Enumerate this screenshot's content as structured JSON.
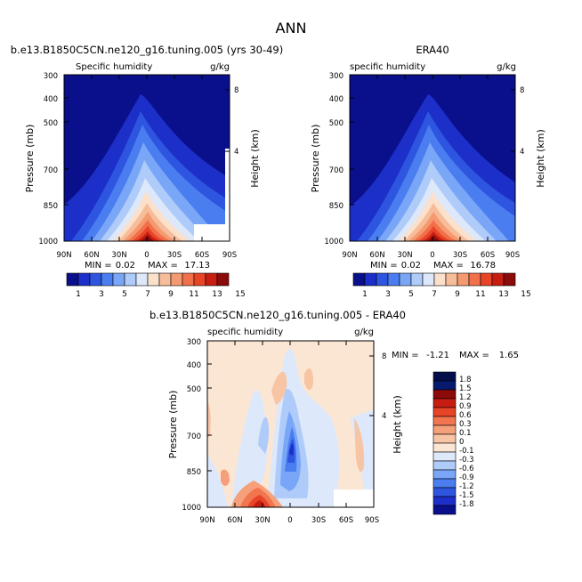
{
  "page": {
    "title": "ANN"
  },
  "colors": {
    "bg_field": "#ffffff",
    "abs_scale": [
      "#0a0f8c",
      "#1c2fc8",
      "#2e55e0",
      "#4a7df0",
      "#7aa6f7",
      "#aecbf9",
      "#dde8fb",
      "#fbe1cc",
      "#f7bd9a",
      "#f59a70",
      "#f1704a",
      "#e84428",
      "#c81e12",
      "#8b0a0a"
    ],
    "diff_scale": [
      "#0a0f8c",
      "#1c2fc8",
      "#2e55e0",
      "#4a7df0",
      "#7aa6f7",
      "#aecbf9",
      "#dde8fb",
      "#fbe6d4",
      "#f7c4a4",
      "#f5a07a",
      "#f17650",
      "#e84428",
      "#c81e12",
      "#8b0a0a"
    ]
  },
  "chart_data": [
    {
      "type": "heatmap",
      "title": "b.e13.B1850C5CN.ne120_g16.tuning.005 (yrs 30-49)",
      "subtitle_left": "Specific humidity",
      "subtitle_right": "g/kg",
      "xlabel": "",
      "ylabel": "Pressure (mb)",
      "ylabel_right": "Height (km)",
      "xticks": [
        "90N",
        "60N",
        "30N",
        "0",
        "30S",
        "60S",
        "90S"
      ],
      "yticks": [
        "300",
        "400",
        "500",
        "700",
        "850",
        "1000"
      ],
      "yticks_right": [
        "8",
        "4"
      ],
      "min_label": "MIN =",
      "min_value": "0.02",
      "max_label": "MAX =",
      "max_value": "17.13",
      "colorbar_labels": [
        "1",
        "3",
        "5",
        "7",
        "9",
        "11",
        "13",
        "15"
      ]
    },
    {
      "type": "heatmap",
      "title": "ERA40",
      "subtitle_left": "specific humidity",
      "subtitle_right": "g/kg",
      "xlabel": "",
      "ylabel": "Pressure (mb)",
      "ylabel_right": "Height (km)",
      "xticks": [
        "90N",
        "60N",
        "30N",
        "0",
        "30S",
        "60S",
        "90S"
      ],
      "yticks": [
        "300",
        "400",
        "500",
        "700",
        "850",
        "1000"
      ],
      "yticks_right": [
        "8",
        "4"
      ],
      "min_label": "MIN =",
      "min_value": "0.02",
      "max_label": "MAX =",
      "max_value": "16.78",
      "colorbar_labels": [
        "1",
        "3",
        "5",
        "7",
        "9",
        "11",
        "13",
        "15"
      ]
    },
    {
      "type": "heatmap",
      "title": "b.e13.B1850C5CN.ne120_g16.tuning.005 - ERA40",
      "subtitle_left": "specific humidity",
      "subtitle_right": "g/kg",
      "xlabel": "",
      "ylabel": "Pressure (mb)",
      "ylabel_right": "Height (km)",
      "xticks": [
        "90N",
        "60N",
        "30N",
        "0",
        "30S",
        "60S",
        "90S"
      ],
      "yticks": [
        "300",
        "400",
        "500",
        "700",
        "850",
        "1000"
      ],
      "yticks_right": [
        "8",
        "4"
      ],
      "min_label": "MIN =",
      "min_value": "-1.21",
      "max_label": "MAX =",
      "max_value": "1.65",
      "colorbar_labels": [
        "1.8",
        "1.5",
        "1.2",
        "0.9",
        "0.6",
        "0.3",
        "0.1",
        "0",
        "-0.1",
        "-0.3",
        "-0.6",
        "-0.9",
        "-1.2",
        "-1.5",
        "-1.8"
      ]
    }
  ]
}
